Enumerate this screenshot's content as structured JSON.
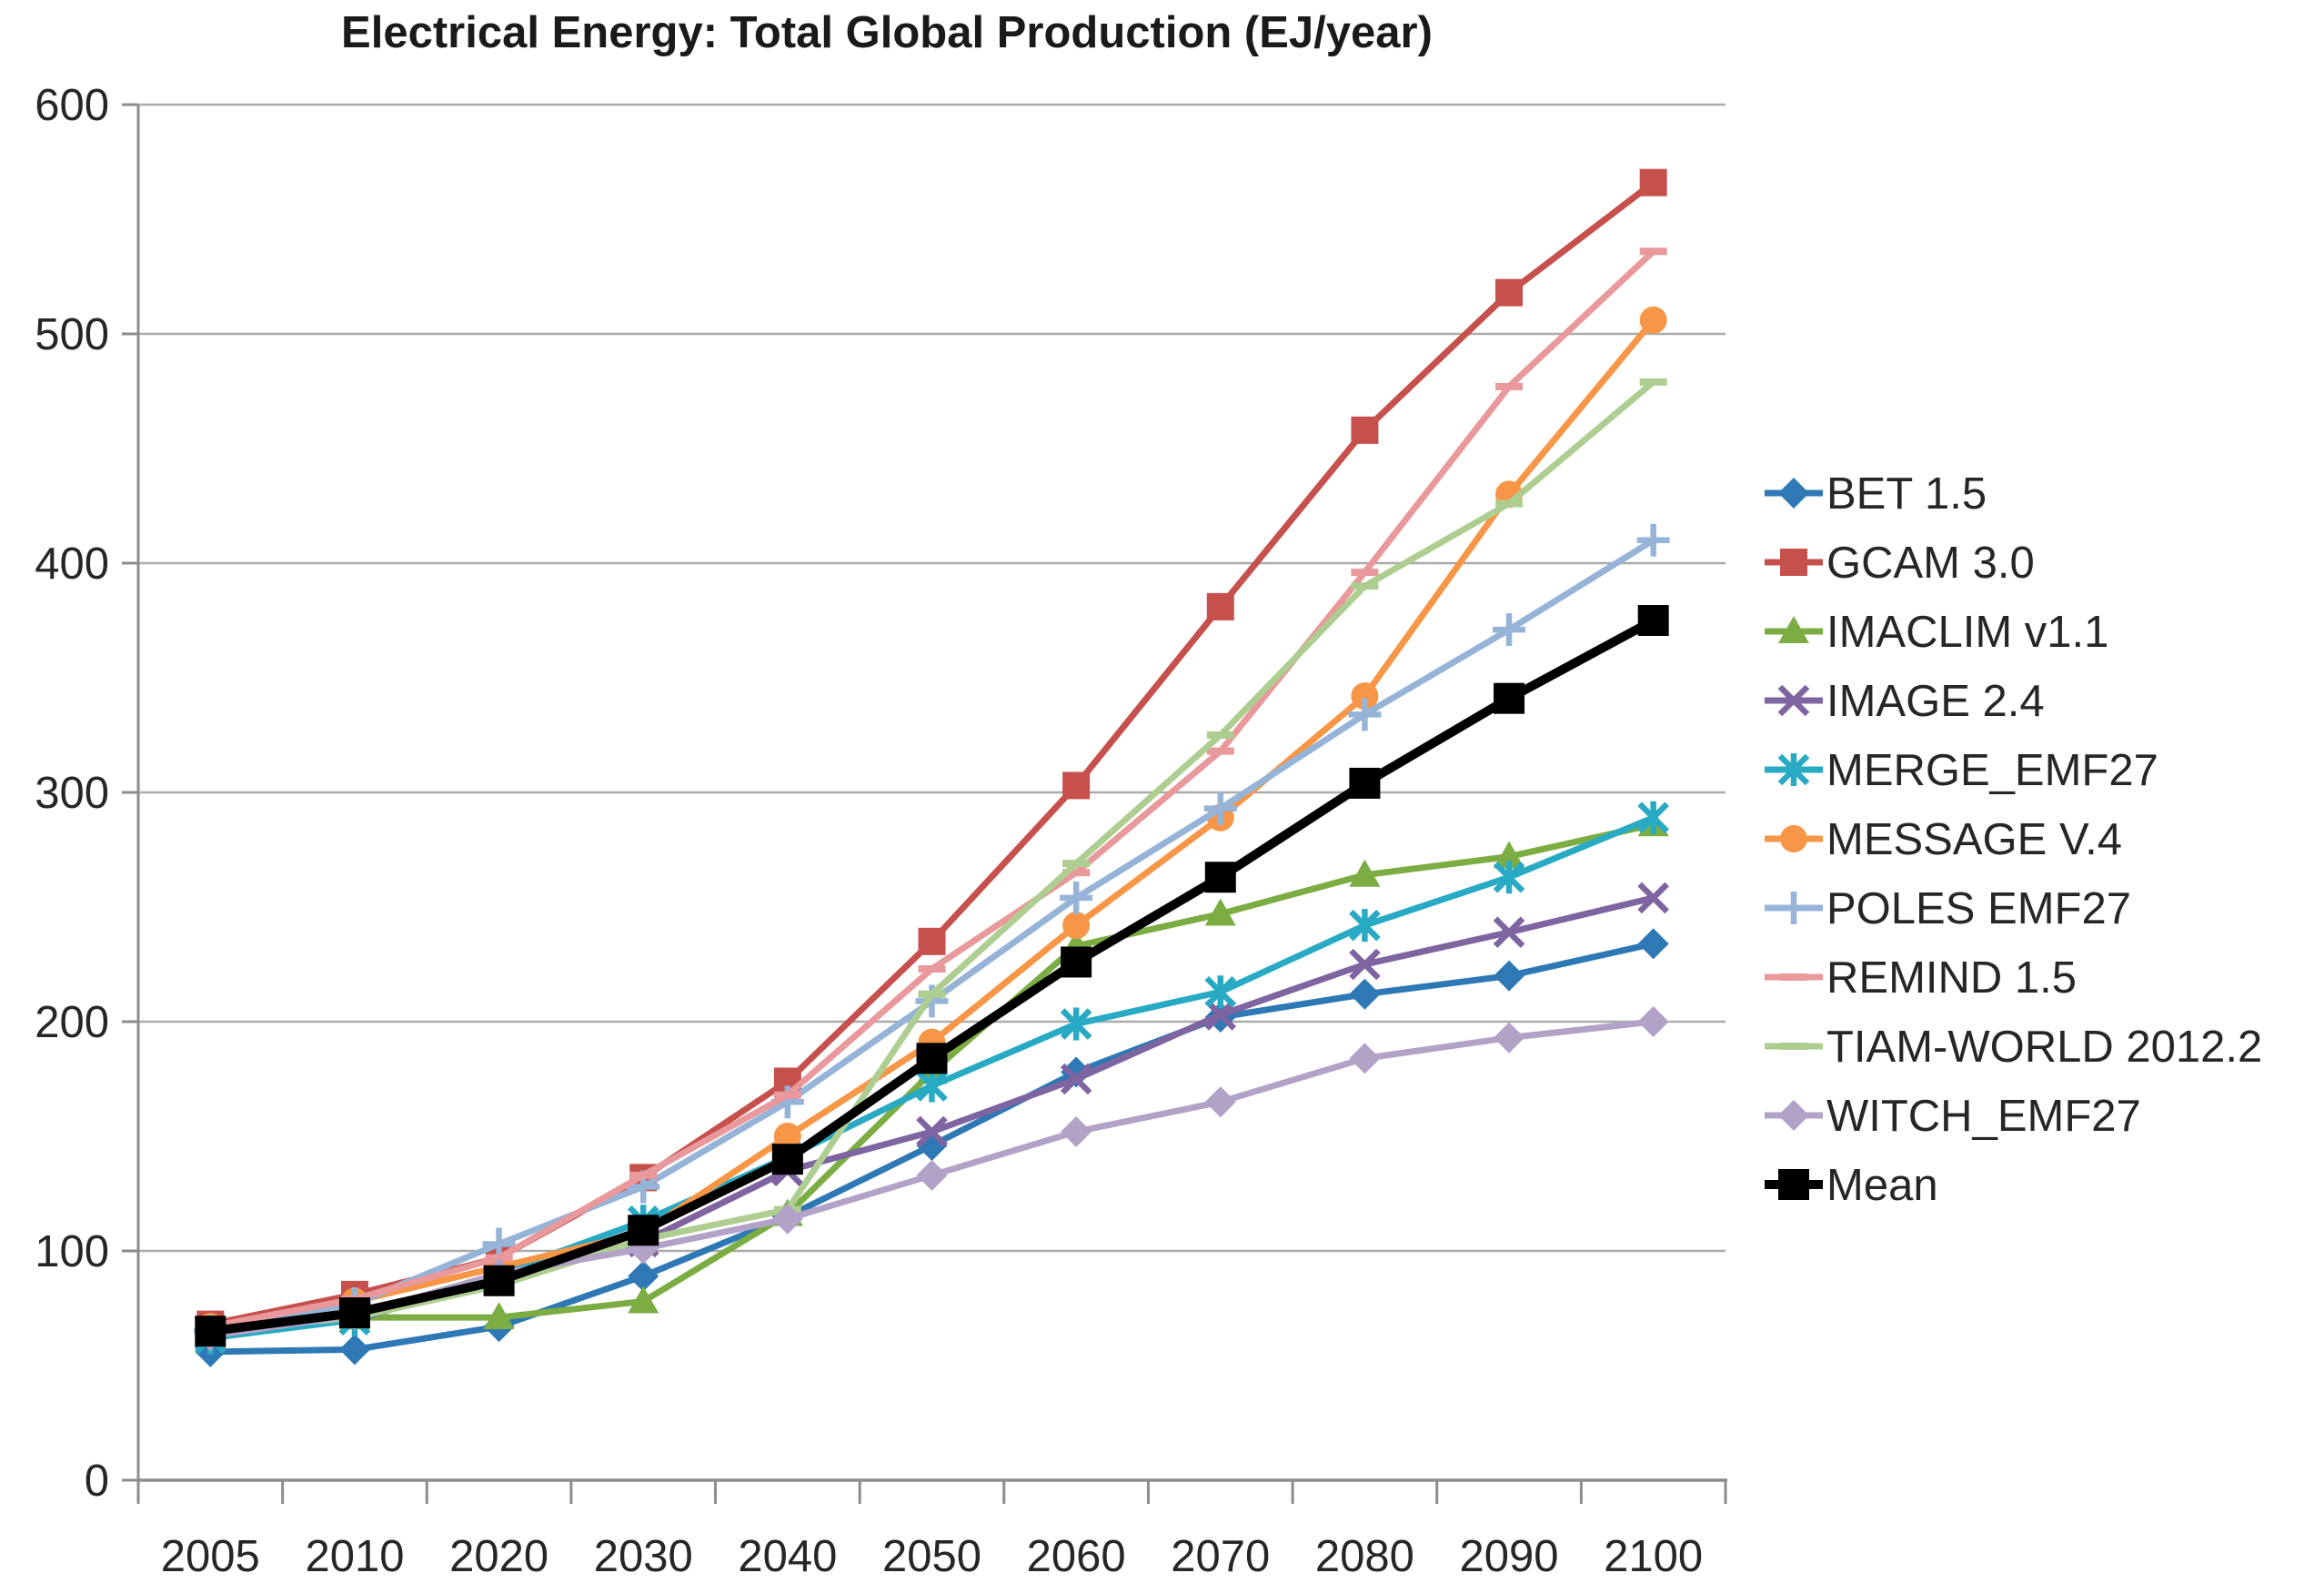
{
  "chart_data": {
    "type": "line",
    "title": "Electrical Energy: Total Global Production (EJ/year)",
    "xlabel": "",
    "ylabel": "",
    "ylim": [
      0,
      600
    ],
    "y_ticks": [
      0,
      100,
      200,
      300,
      400,
      500,
      600
    ],
    "grid": true,
    "legend_position": "right",
    "categories": [
      "2005",
      "2010",
      "2020",
      "2030",
      "2040",
      "2050",
      "2060",
      "2070",
      "2080",
      "2090",
      "2100"
    ],
    "series": [
      {
        "name": "BET 1.5",
        "color": "#2e79b5",
        "marker": "diamond",
        "line_width": 7,
        "values": [
          56,
          57,
          67,
          89,
          115,
          146,
          178,
          202,
          212,
          220,
          234
        ]
      },
      {
        "name": "GCAM 3.0",
        "color": "#c6504c",
        "marker": "square",
        "line_width": 7,
        "values": [
          68,
          81,
          97,
          132,
          174,
          235,
          303,
          381,
          458,
          518,
          566
        ]
      },
      {
        "name": "IMACLIM v1.1",
        "color": "#7bad43",
        "marker": "triangle",
        "line_width": 7,
        "values": [
          66,
          71,
          71,
          78,
          116,
          178,
          233,
          247,
          264,
          272,
          286
        ]
      },
      {
        "name": "IMAGE 2.4",
        "color": "#7e64a0",
        "marker": "x",
        "line_width": 7,
        "values": [
          63,
          70,
          88,
          104,
          135,
          152,
          175,
          203,
          225,
          239,
          254
        ]
      },
      {
        "name": "MERGE_EMF27",
        "color": "#29aac4",
        "marker": "star",
        "line_width": 7,
        "values": [
          62,
          70,
          90,
          113,
          141,
          172,
          199,
          213,
          242,
          263,
          289
        ]
      },
      {
        "name": "MESSAGE V.4",
        "color": "#f79646",
        "marker": "circle",
        "line_width": 7,
        "values": [
          67,
          78,
          93,
          108,
          150,
          191,
          242,
          289,
          342,
          430,
          506
        ]
      },
      {
        "name": "POLES EMF27",
        "color": "#96b3d8",
        "marker": "plus",
        "line_width": 7,
        "values": [
          65,
          77,
          103,
          128,
          165,
          209,
          254,
          293,
          334,
          371,
          410
        ]
      },
      {
        "name": "REMIND 1.5",
        "color": "#e9989b",
        "marker": "dash",
        "line_width": 7,
        "values": [
          67,
          79,
          97,
          133,
          168,
          223,
          265,
          318,
          396,
          477,
          536
        ]
      },
      {
        "name": "TIAM-WORLD 2012.2",
        "color": "#adce90",
        "marker": "dash",
        "line_width": 7,
        "values": [
          65,
          71,
          85,
          105,
          118,
          212,
          269,
          325,
          390,
          426,
          479
        ]
      },
      {
        "name": "WITCH_EMF27",
        "color": "#b3a2c8",
        "marker": "diamond",
        "line_width": 7,
        "values": [
          63,
          72,
          90,
          101,
          114,
          133,
          152,
          165,
          184,
          193,
          200
        ]
      },
      {
        "name": "Mean",
        "color": "#000000",
        "marker": "square",
        "line_width": 10,
        "values": [
          65,
          73,
          87,
          109,
          140,
          184,
          226,
          263,
          304,
          341,
          375
        ]
      }
    ],
    "colors": {
      "gridline": "#ababab",
      "axis": "#8c8c8c",
      "tick_text": "#262626"
    }
  }
}
